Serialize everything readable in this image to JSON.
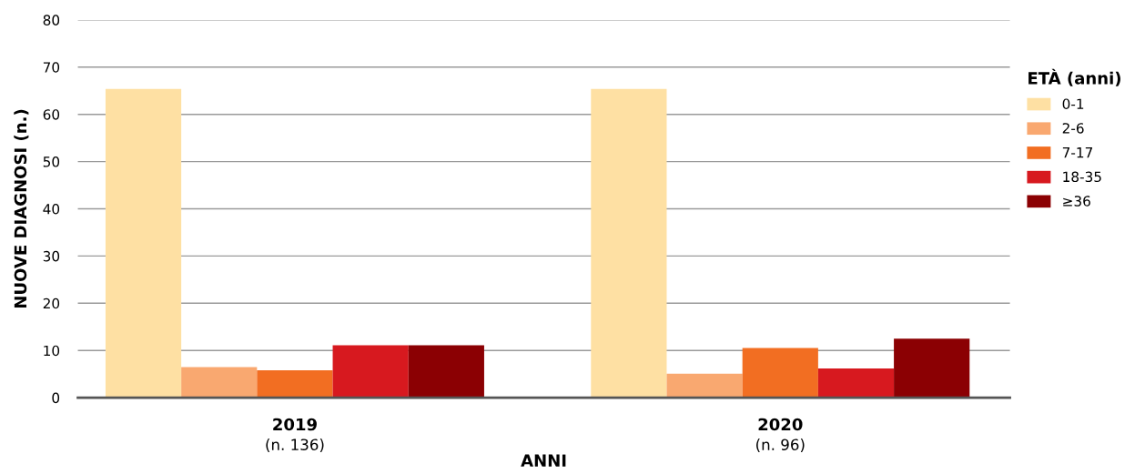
{
  "chart_data": {
    "type": "bar",
    "xlabel": "ANNI",
    "ylabel": "NUOVE DIAGNOSI (n.)",
    "legend_title": "ETÀ (anni)",
    "categories": [
      "2019",
      "2020"
    ],
    "annotations": [
      "(n. 136)",
      "(n. 96)"
    ],
    "series": [
      {
        "name": "0-1",
        "color": "#fee0a3",
        "values": [
          65.4,
          65.4
        ]
      },
      {
        "name": "2-6",
        "color": "#f9a870",
        "values": [
          6.5,
          5.1
        ]
      },
      {
        "name": "7-17",
        "color": "#f26e22",
        "values": [
          5.8,
          10.5
        ]
      },
      {
        "name": "18-35",
        "color": "#d7191f",
        "values": [
          11.1,
          6.2
        ]
      },
      {
        "name": "≥36",
        "color": "#8b0003",
        "values": [
          11.1,
          12.5
        ]
      }
    ],
    "ylim": [
      0,
      80
    ],
    "yticks": [
      0,
      10,
      20,
      30,
      40,
      50,
      60,
      70,
      80
    ],
    "grid": "y",
    "legend": "top right"
  }
}
